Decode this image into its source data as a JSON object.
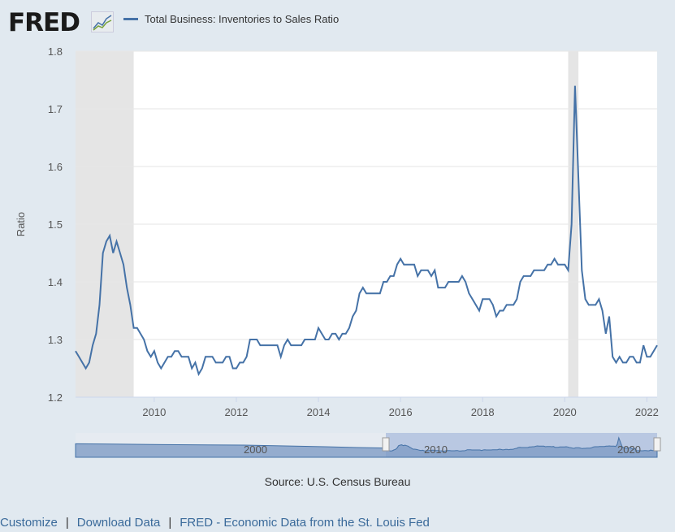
{
  "header": {
    "logo_text": "FRED",
    "legend_label": "Total Business: Inventories to Sales Ratio"
  },
  "footer": {
    "source": "Source: U.S. Census Bureau",
    "links": [
      "Customize",
      "Download Data",
      "FRED - Economic Data from the St. Louis Fed"
    ],
    "separator": "|"
  },
  "navigator": {
    "labels": [
      "2000",
      "2010",
      "2020"
    ]
  },
  "colors": {
    "series": "#4572a7",
    "recession": "#e5e5e5",
    "background": "#e1e9f0"
  },
  "chart_data": {
    "type": "line",
    "title": "Total Business: Inventories to Sales Ratio",
    "xlabel": "",
    "ylabel": "Ratio",
    "ylim": [
      1.2,
      1.8
    ],
    "yticks": [
      "1.2",
      "1.3",
      "1.4",
      "1.5",
      "1.6",
      "1.7",
      "1.8"
    ],
    "xticks": [
      "2010",
      "2012",
      "2014",
      "2016",
      "2018",
      "2020",
      "2022"
    ],
    "x_start": "2008-02",
    "x_end": "2022-04",
    "frequency": "monthly",
    "recessions": [
      [
        "2008-02",
        "2009-06"
      ],
      [
        "2020-02",
        "2020-04"
      ]
    ],
    "grid": true,
    "legend": "top-left",
    "series": [
      {
        "name": "Total Business: Inventories to Sales Ratio",
        "values": [
          1.28,
          1.27,
          1.26,
          1.25,
          1.26,
          1.29,
          1.31,
          1.36,
          1.45,
          1.47,
          1.48,
          1.45,
          1.47,
          1.45,
          1.43,
          1.39,
          1.36,
          1.32,
          1.32,
          1.31,
          1.3,
          1.28,
          1.27,
          1.28,
          1.26,
          1.25,
          1.26,
          1.27,
          1.27,
          1.28,
          1.28,
          1.27,
          1.27,
          1.27,
          1.25,
          1.26,
          1.24,
          1.25,
          1.27,
          1.27,
          1.27,
          1.26,
          1.26,
          1.26,
          1.27,
          1.27,
          1.25,
          1.25,
          1.26,
          1.26,
          1.27,
          1.3,
          1.3,
          1.3,
          1.29,
          1.29,
          1.29,
          1.29,
          1.29,
          1.29,
          1.27,
          1.29,
          1.3,
          1.29,
          1.29,
          1.29,
          1.29,
          1.3,
          1.3,
          1.3,
          1.3,
          1.32,
          1.31,
          1.3,
          1.3,
          1.31,
          1.31,
          1.3,
          1.31,
          1.31,
          1.32,
          1.34,
          1.35,
          1.38,
          1.39,
          1.38,
          1.38,
          1.38,
          1.38,
          1.38,
          1.4,
          1.4,
          1.41,
          1.41,
          1.43,
          1.44,
          1.43,
          1.43,
          1.43,
          1.43,
          1.41,
          1.42,
          1.42,
          1.42,
          1.41,
          1.42,
          1.39,
          1.39,
          1.39,
          1.4,
          1.4,
          1.4,
          1.4,
          1.41,
          1.4,
          1.38,
          1.37,
          1.36,
          1.35,
          1.37,
          1.37,
          1.37,
          1.36,
          1.34,
          1.35,
          1.35,
          1.36,
          1.36,
          1.36,
          1.37,
          1.4,
          1.41,
          1.41,
          1.41,
          1.42,
          1.42,
          1.42,
          1.42,
          1.43,
          1.43,
          1.44,
          1.43,
          1.43,
          1.43,
          1.42,
          1.5,
          1.74,
          1.58,
          1.42,
          1.37,
          1.36,
          1.36,
          1.36,
          1.37,
          1.35,
          1.31,
          1.34,
          1.27,
          1.26,
          1.27,
          1.26,
          1.26,
          1.27,
          1.27,
          1.26,
          1.26,
          1.29,
          1.27,
          1.27,
          1.28,
          1.29
        ]
      }
    ]
  }
}
